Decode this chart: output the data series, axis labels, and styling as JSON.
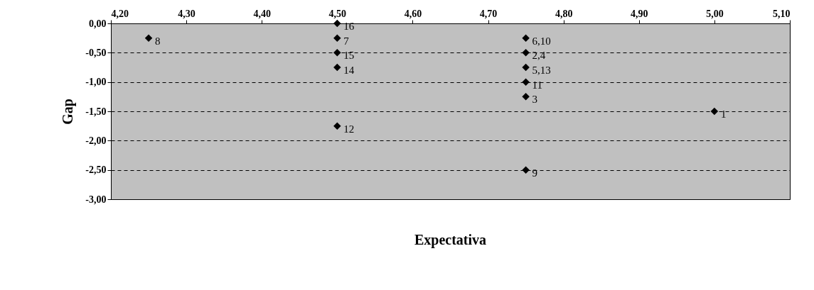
{
  "chart_data": {
    "type": "scatter",
    "xlabel": "Expectativa",
    "ylabel": "Gap",
    "x": [
      5.0,
      4.75,
      4.75,
      4.75,
      4.75,
      4.5,
      4.25,
      4.75,
      4.75,
      4.5,
      4.5,
      4.5,
      4.5
    ],
    "series": [
      {
        "color": "#000000",
        "values": [
          -1.5,
          -0.5,
          -1.25,
          -0.75,
          -0.25,
          -0.25,
          -0.25,
          -2.5,
          -1.0,
          -1.75,
          -0.75,
          -0.5,
          0.0
        ]
      }
    ],
    "annotations": [
      {
        "text": "1",
        "x": 5.0,
        "y": -1.5
      },
      {
        "text": "2,4",
        "x": 4.75,
        "y": -0.5
      },
      {
        "text": "3",
        "x": 4.75,
        "y": -1.25
      },
      {
        "text": "5,13",
        "x": 4.75,
        "y": -0.75
      },
      {
        "text": "6,10",
        "x": 4.75,
        "y": -0.25
      },
      {
        "text": "7",
        "x": 4.5,
        "y": -0.25
      },
      {
        "text": "8",
        "x": 4.25,
        "y": -0.25
      },
      {
        "text": "9",
        "x": 4.75,
        "y": -2.5
      },
      {
        "text": "11",
        "x": 4.75,
        "y": -1.0
      },
      {
        "text": "12",
        "x": 4.5,
        "y": -1.75
      },
      {
        "text": "14",
        "x": 4.5,
        "y": -0.75
      },
      {
        "text": "15",
        "x": 4.5,
        "y": -0.5
      },
      {
        "text": "16",
        "x": 4.5,
        "y": 0.0
      }
    ],
    "xlim": [
      4.2,
      5.1
    ],
    "xticks": [
      {
        "value": 4.2,
        "label": "4,20"
      },
      {
        "value": 4.3,
        "label": "4,30"
      },
      {
        "value": 4.4,
        "label": "4,40"
      },
      {
        "value": 4.5,
        "label": "4,50"
      },
      {
        "value": 4.6,
        "label": "4,60"
      },
      {
        "value": 4.7,
        "label": "4,70"
      },
      {
        "value": 4.8,
        "label": "4,80"
      },
      {
        "value": 4.9,
        "label": "4,90"
      },
      {
        "value": 5.0,
        "label": "5,00"
      },
      {
        "value": 5.1,
        "label": "5,10"
      }
    ],
    "ylim": [
      -3.0,
      0.0
    ],
    "yticks": [
      {
        "value": 0,
        "label": "0,00"
      },
      {
        "value": -0.5,
        "label": "-0,50"
      },
      {
        "value": -1,
        "label": "-1,00"
      },
      {
        "value": -1.5,
        "label": "-1,50"
      },
      {
        "value": -2,
        "label": "-2,00"
      },
      {
        "value": -2.5,
        "label": "-2,50"
      },
      {
        "value": -3,
        "label": "-3,00"
      }
    ],
    "grid": "y",
    "marker": "diamond"
  }
}
